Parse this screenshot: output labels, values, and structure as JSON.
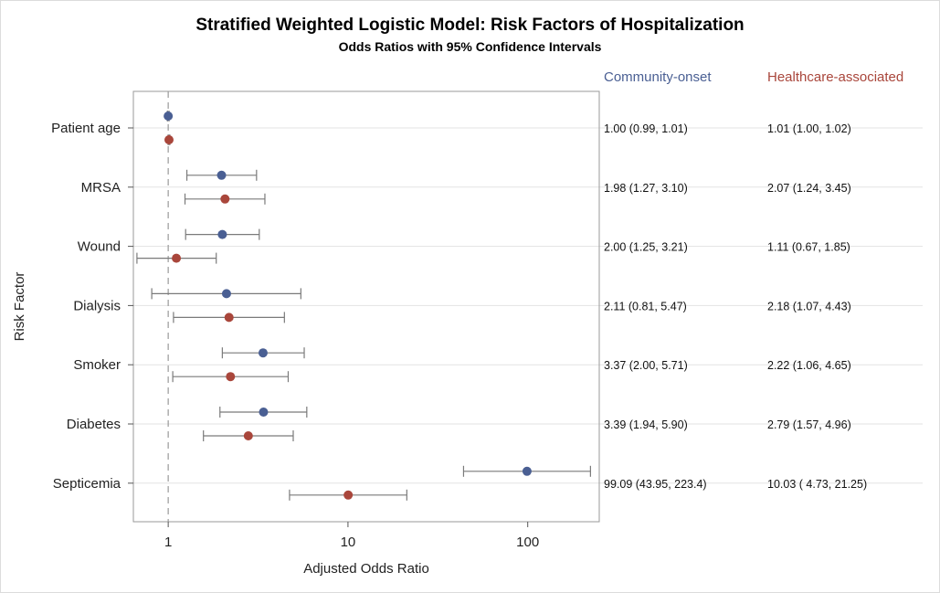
{
  "title": "Stratified Weighted Logistic Model: Risk Factors of Hospitalization",
  "subtitle": "Odds Ratios with 95% Confidence Intervals",
  "chart_data": {
    "type": "scatter",
    "xlabel": "Adjusted Odds Ratio",
    "ylabel": "Risk Factor",
    "x_scale": "log",
    "xlim": [
      0.64,
      250
    ],
    "xticks": [
      1,
      10,
      100
    ],
    "xtick_labels": [
      "1",
      "10",
      "100"
    ],
    "reference_line": 1,
    "categories": [
      "Patient age",
      "MRSA",
      "Wound",
      "Dialysis",
      "Smoker",
      "Diabetes",
      "Septicemia"
    ],
    "series": [
      {
        "name": "Community-onset",
        "color": "#4a5f93",
        "or": [
          1.0,
          1.98,
          2.0,
          2.11,
          3.37,
          3.39,
          99.09
        ],
        "lower": [
          0.99,
          1.27,
          1.25,
          0.81,
          2.0,
          1.94,
          43.95
        ],
        "upper": [
          1.01,
          3.1,
          3.21,
          5.47,
          5.71,
          5.9,
          223.4
        ],
        "labels": [
          "1.00 (0.99,  1.01)",
          "1.98 (1.27,  3.10)",
          "2.00 (1.25,  3.21)",
          "2.11 (0.81,  5.47)",
          "3.37 (2.00,  5.71)",
          "3.39 (1.94,  5.90)",
          "99.09 (43.95, 223.4)"
        ]
      },
      {
        "name": "Healthcare-associated",
        "color": "#a9463b",
        "or": [
          1.01,
          2.07,
          1.11,
          2.18,
          2.22,
          2.79,
          10.03
        ],
        "lower": [
          1.0,
          1.24,
          0.67,
          1.07,
          1.06,
          1.57,
          4.73
        ],
        "upper": [
          1.02,
          3.45,
          1.85,
          4.43,
          4.65,
          4.96,
          21.25
        ],
        "labels": [
          "1.01 (1.00,  1.02)",
          "2.07 (1.24,  3.45)",
          "1.11 (0.67,  1.85)",
          "2.18 (1.07,  4.43)",
          "2.22 (1.06,  4.65)",
          "2.79 (1.57,  4.96)",
          "10.03 ( 4.73, 21.25)"
        ]
      }
    ]
  }
}
